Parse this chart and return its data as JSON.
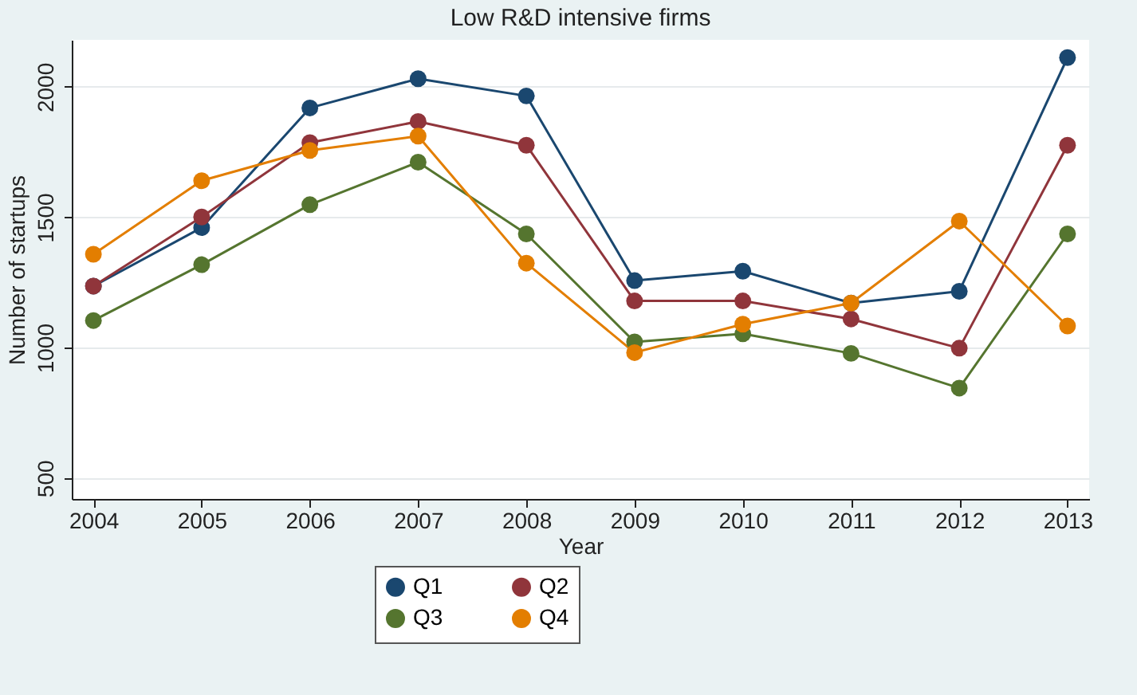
{
  "chart_data": {
    "type": "line",
    "title": "Low R&D intensive firms",
    "xlabel": "Year",
    "ylabel": "Number of startups",
    "x": [
      2004,
      2005,
      2006,
      2007,
      2008,
      2009,
      2010,
      2011,
      2012,
      2013
    ],
    "xlim": [
      2003.8,
      2013.2
    ],
    "xticks": [
      2004,
      2005,
      2006,
      2007,
      2008,
      2009,
      2010,
      2011,
      2012,
      2013
    ],
    "ylim": [
      420,
      2180
    ],
    "yticks": [
      500,
      1000,
      1500,
      2000
    ],
    "grid": "y",
    "legend": "bottom",
    "marker": "circle",
    "line_style": "solid",
    "series": [
      {
        "name": "Q1",
        "color": "#1a476f",
        "values": [
          1236,
          1460,
          1919,
          2031,
          1965,
          1257,
          1293,
          1171,
          1216,
          2112
        ]
      },
      {
        "name": "Q2",
        "color": "#90353b",
        "values": [
          1236,
          1501,
          1786,
          1867,
          1776,
          1179,
          1179,
          1110,
          998,
          1776
        ]
      },
      {
        "name": "Q3",
        "color": "#55752f",
        "values": [
          1104,
          1318,
          1548,
          1711,
          1436,
          1022,
          1053,
          978,
          845,
          1436
        ]
      },
      {
        "name": "Q4",
        "color": "#e37e00",
        "values": [
          1358,
          1640,
          1756,
          1811,
          1324,
          981,
          1090,
          1171,
          1485,
          1083
        ]
      }
    ]
  }
}
